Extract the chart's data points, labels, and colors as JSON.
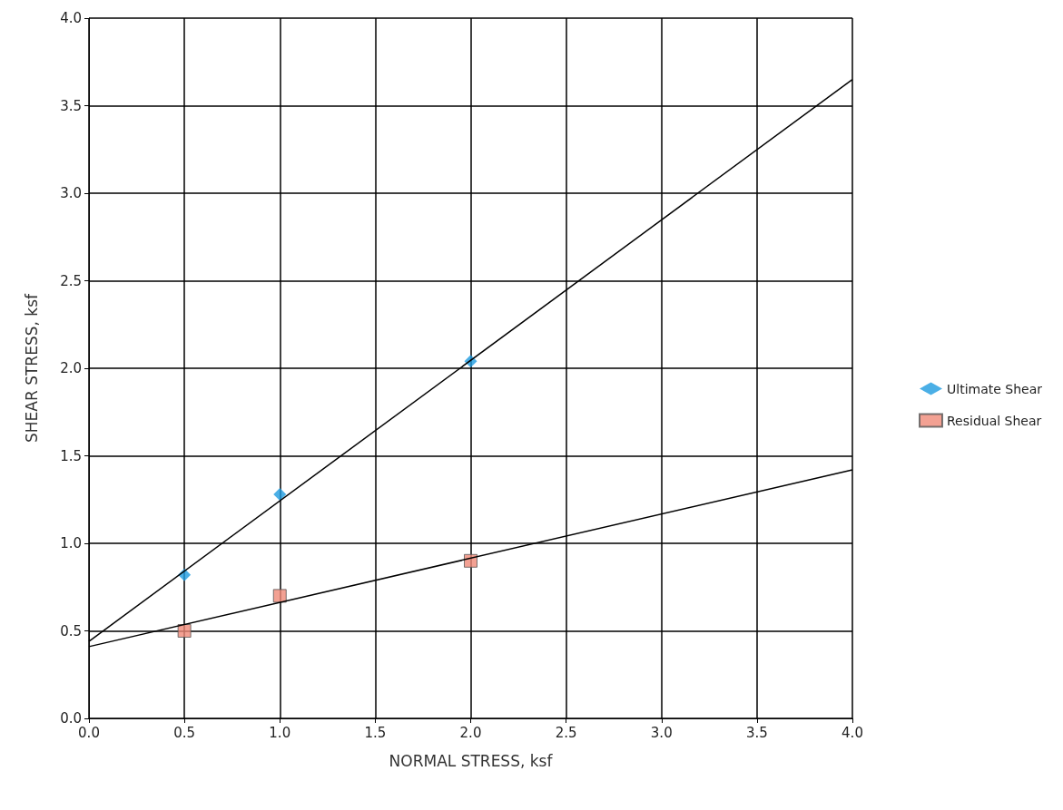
{
  "chart_data": {
    "type": "scatter",
    "xlabel": "NORMAL STRESS, ksf",
    "ylabel": "SHEAR STRESS, ksf",
    "xlim": [
      0,
      4
    ],
    "ylim": [
      0,
      4
    ],
    "xticks": [
      {
        "value": 0,
        "label": "0.0"
      },
      {
        "value": 0.5,
        "label": "0.5"
      },
      {
        "value": 1,
        "label": "1.0"
      },
      {
        "value": 1.5,
        "label": "1.5"
      },
      {
        "value": 2,
        "label": "2.0"
      },
      {
        "value": 2.5,
        "label": "2.5"
      },
      {
        "value": 3,
        "label": "3.0"
      },
      {
        "value": 3.5,
        "label": "3.5"
      },
      {
        "value": 4,
        "label": "4.0"
      }
    ],
    "yticks": [
      {
        "value": 0,
        "label": "0.0"
      },
      {
        "value": 0.5,
        "label": "0.5"
      },
      {
        "value": 1,
        "label": "1.0"
      },
      {
        "value": 1.5,
        "label": "1.5"
      },
      {
        "value": 2,
        "label": "2.0"
      },
      {
        "value": 2.5,
        "label": "2.5"
      },
      {
        "value": 3,
        "label": "3.0"
      },
      {
        "value": 3.5,
        "label": "3.5"
      },
      {
        "value": 4,
        "label": "4.0"
      }
    ],
    "grid": true,
    "legend": "right",
    "series": [
      {
        "name": "Ultimate Shear",
        "color": "#1e9be0",
        "marker": "diamond",
        "x": [
          0.5,
          1.0,
          2.0
        ],
        "values": [
          0.82,
          1.28,
          2.04
        ]
      },
      {
        "name": "Residual Shear",
        "color": "#f08a78",
        "marker": "square",
        "x": [
          0.5,
          1.0,
          2.0
        ],
        "values": [
          0.5,
          0.7,
          0.9
        ]
      },
      {
        "type": "line",
        "color": "#000000",
        "marker": "none",
        "x": [
          0,
          4
        ],
        "values": [
          0.44,
          3.65
        ]
      },
      {
        "type": "line",
        "color": "#000000",
        "marker": "none",
        "x": [
          0,
          4
        ],
        "values": [
          0.41,
          1.42
        ]
      }
    ]
  }
}
